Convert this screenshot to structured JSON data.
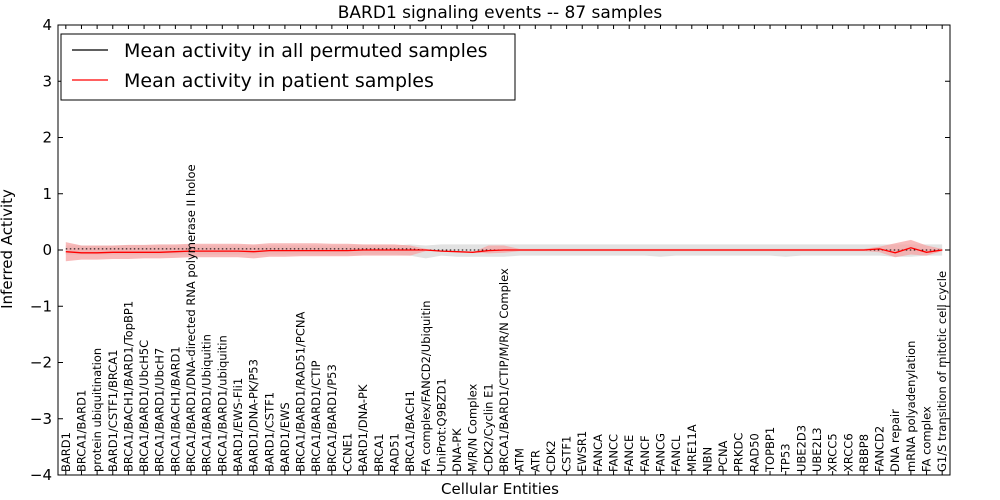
{
  "chart_data": {
    "type": "line",
    "title": "BARD1 signaling events -- 87 samples",
    "xlabel": "Cellular Entities",
    "ylabel": "Inferred Activity",
    "ylim": [
      -4,
      4
    ],
    "yticks": [
      -4,
      -3,
      -2,
      -1,
      0,
      1,
      2,
      3,
      4
    ],
    "ytick_labels": [
      "−4",
      "−3",
      "−2",
      "−1",
      "0",
      "1",
      "2",
      "3",
      "4"
    ],
    "legend": {
      "position": "top-left",
      "entries": [
        {
          "label": "Mean activity in all permuted samples",
          "color": "#000000"
        },
        {
          "label": "Mean activity in patient samples",
          "color": "#ff0000"
        }
      ]
    },
    "categories": [
      "BARD1",
      "BRCA1/BARD1",
      "protein ubiquitination",
      "BARD1/CSTF1/BRCA1",
      "BRCA1/BACH1/BARD1/TopBP1",
      "BRCA1/BARD1/UbcH5C",
      "BRCA1/BARD1/UbcH7",
      "BRCA1/BACH1/BARD1",
      "BRCA1/BARD1/DNA-directed RNA polymerase II holoe",
      "BRCA1/BARD1/Ubiquitin",
      "BRCA1/BARD1/ubiquitin",
      "BARD1/EWS-Fli1",
      "BARD1/DNA-PK/P53",
      "BARD1/CSTF1",
      "BARD1/EWS",
      "BRCA1/BARD1/RAD51/PCNA",
      "BRCA1/BARD1/CTIP",
      "BRCA1/BARD1/P53",
      "CCNE1",
      "BARD1/DNA-PK",
      "BRCA1",
      "RAD51",
      "BRCA1/BACH1",
      "FA complex/FANCD2/Ubiquitin",
      "UniProt:Q9BZD1",
      "DNA-PK",
      "M/R/N Complex",
      "CDK2/Cyclin E1",
      "BRCA1/BARD1/CTIP/M/R/N Complex",
      "ATM",
      "ATR",
      "CDK2",
      "CSTF1",
      "EWSR1",
      "FANCA",
      "FANCC",
      "FANCE",
      "FANCF",
      "FANCG",
      "FANCL",
      "MRE11A",
      "NBN",
      "PCNA",
      "PRKDC",
      "RAD50",
      "TOPBP1",
      "TP53",
      "UBE2D3",
      "UBE2L3",
      "XRCC5",
      "XRCC6",
      "RBBP8",
      "FANCD2",
      "DNA repair",
      "mRNA polyadenylation",
      "FA complex",
      "G1/S transition of mitotic cell cycle"
    ],
    "series": [
      {
        "name": "Mean activity in all permuted samples",
        "color": "#000000",
        "style": "dotted",
        "values": [
          0.02,
          0.02,
          0.02,
          0.02,
          0.02,
          0.02,
          0.02,
          0.02,
          0.02,
          0.02,
          0.02,
          0.02,
          0.02,
          0.02,
          0.02,
          0.02,
          0.02,
          0.02,
          0.02,
          0.02,
          0.02,
          0.02,
          0.02,
          0.0,
          0.0,
          0.0,
          0.0,
          0.0,
          0.0,
          0.0,
          0.0,
          0.0,
          0.0,
          0.0,
          0.0,
          0.0,
          0.0,
          0.0,
          0.0,
          0.0,
          0.0,
          0.0,
          0.0,
          0.0,
          0.0,
          0.0,
          0.0,
          0.0,
          0.0,
          0.0,
          0.0,
          0.0,
          0.0,
          0.0,
          0.0,
          0.0,
          0.0
        ],
        "band_low": [
          -0.08,
          -0.08,
          -0.08,
          -0.08,
          -0.08,
          -0.08,
          -0.08,
          -0.08,
          -0.08,
          -0.08,
          -0.08,
          -0.08,
          -0.08,
          -0.08,
          -0.08,
          -0.08,
          -0.08,
          -0.08,
          -0.08,
          -0.08,
          -0.08,
          -0.08,
          -0.1,
          -0.15,
          -0.1,
          -0.12,
          -0.12,
          -0.12,
          -0.12,
          -0.1,
          -0.1,
          -0.1,
          -0.1,
          -0.1,
          -0.1,
          -0.1,
          -0.1,
          -0.1,
          -0.12,
          -0.1,
          -0.1,
          -0.1,
          -0.1,
          -0.1,
          -0.1,
          -0.1,
          -0.12,
          -0.1,
          -0.1,
          -0.1,
          -0.1,
          -0.1,
          -0.1,
          -0.12,
          -0.12,
          -0.1,
          -0.1
        ],
        "band_high": [
          0.08,
          0.08,
          0.08,
          0.08,
          0.08,
          0.08,
          0.08,
          0.08,
          0.08,
          0.08,
          0.08,
          0.08,
          0.08,
          0.08,
          0.08,
          0.08,
          0.08,
          0.08,
          0.08,
          0.08,
          0.08,
          0.08,
          0.1,
          0.08,
          0.1,
          0.1,
          0.1,
          0.1,
          0.1,
          0.1,
          0.1,
          0.1,
          0.1,
          0.1,
          0.1,
          0.1,
          0.1,
          0.1,
          0.1,
          0.1,
          0.1,
          0.1,
          0.1,
          0.1,
          0.1,
          0.1,
          0.1,
          0.1,
          0.1,
          0.1,
          0.1,
          0.1,
          0.1,
          0.1,
          0.1,
          0.1,
          0.1
        ]
      },
      {
        "name": "Mean activity in patient samples",
        "color": "#ff0000",
        "style": "solid",
        "values": [
          -0.03,
          -0.05,
          -0.05,
          -0.04,
          -0.04,
          -0.04,
          -0.04,
          -0.03,
          -0.02,
          -0.02,
          -0.02,
          -0.02,
          -0.03,
          -0.01,
          -0.01,
          -0.01,
          -0.01,
          -0.01,
          -0.01,
          0.0,
          0.0,
          0.0,
          0.0,
          0.0,
          -0.02,
          -0.03,
          -0.04,
          -0.01,
          0.0,
          0.0,
          0.0,
          0.0,
          0.0,
          0.0,
          0.0,
          0.0,
          0.0,
          0.0,
          0.0,
          0.0,
          0.0,
          0.0,
          0.0,
          0.0,
          0.0,
          0.0,
          0.0,
          0.0,
          0.0,
          0.0,
          0.0,
          0.0,
          0.02,
          -0.05,
          0.04,
          -0.04,
          0.0
        ],
        "band_low": [
          -0.2,
          -0.17,
          -0.17,
          -0.16,
          -0.16,
          -0.15,
          -0.15,
          -0.14,
          -0.13,
          -0.13,
          -0.13,
          -0.13,
          -0.15,
          -0.12,
          -0.12,
          -0.11,
          -0.11,
          -0.11,
          -0.11,
          -0.1,
          -0.1,
          -0.1,
          -0.1,
          -0.02,
          -0.02,
          -0.03,
          -0.04,
          -0.06,
          -0.05,
          -0.02,
          -0.02,
          -0.02,
          -0.02,
          -0.02,
          -0.02,
          -0.02,
          -0.02,
          -0.02,
          -0.02,
          -0.02,
          -0.02,
          -0.02,
          -0.02,
          -0.02,
          -0.02,
          -0.02,
          -0.02,
          -0.02,
          -0.02,
          -0.02,
          -0.02,
          -0.02,
          -0.04,
          -0.13,
          -0.08,
          -0.1,
          -0.02
        ],
        "band_high": [
          0.14,
          0.08,
          0.08,
          0.08,
          0.09,
          0.09,
          0.1,
          0.1,
          0.11,
          0.11,
          0.11,
          0.11,
          0.1,
          0.12,
          0.12,
          0.12,
          0.12,
          0.11,
          0.11,
          0.1,
          0.1,
          0.1,
          0.08,
          0.02,
          -0.02,
          -0.03,
          -0.04,
          0.08,
          0.08,
          0.02,
          0.02,
          0.02,
          0.02,
          0.02,
          0.02,
          0.02,
          0.02,
          0.02,
          0.02,
          0.02,
          0.02,
          0.02,
          0.02,
          0.02,
          0.02,
          0.02,
          0.02,
          0.02,
          0.02,
          0.02,
          0.02,
          0.02,
          0.06,
          0.12,
          0.18,
          0.08,
          0.02
        ]
      }
    ]
  }
}
